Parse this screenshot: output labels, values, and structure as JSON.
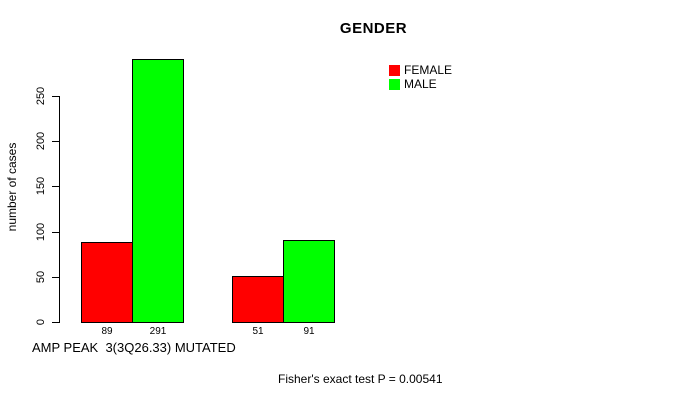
{
  "chart_data": {
    "type": "bar",
    "title": "GENDER",
    "ylabel": "number of cases",
    "xlabel": "AMP PEAK  3(3Q26.33) MUTATED",
    "annotation": "Fisher's exact test P = 0.00541",
    "y_ticks": [
      0,
      50,
      100,
      150,
      200,
      250
    ],
    "ylim": [
      0,
      291
    ],
    "grid": false,
    "legend_position": "top-right",
    "series": [
      {
        "name": "FEMALE",
        "color": "#ff0000",
        "values": [
          89,
          51
        ]
      },
      {
        "name": "MALE",
        "color": "#00ff00",
        "values": [
          291,
          91
        ]
      }
    ],
    "bar_value_labels": [
      "89",
      "291",
      "51",
      "91"
    ],
    "legend": [
      {
        "label": "FEMALE",
        "color": "#ff0000"
      },
      {
        "label": "MALE",
        "color": "#00ff00"
      }
    ],
    "colors": {
      "female": "#ff0000",
      "male": "#00ff00",
      "axis": "#000000",
      "background": "#ffffff"
    }
  }
}
